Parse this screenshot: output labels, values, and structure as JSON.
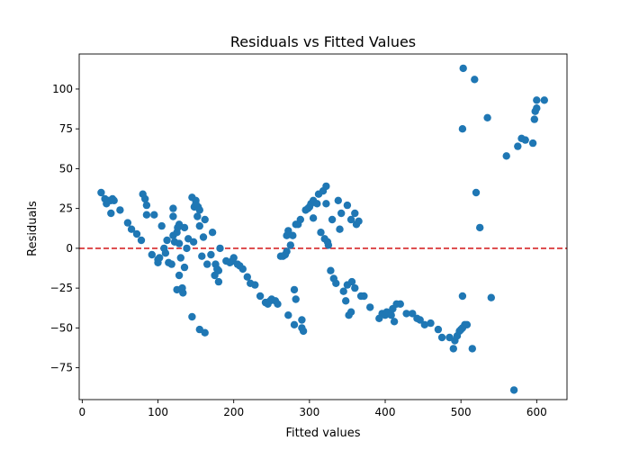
{
  "chart_data": {
    "type": "scatter",
    "title": "Residuals vs Fitted Values",
    "xlabel": "Fitted values",
    "ylabel": "Residuals",
    "xlim": [
      -4,
      640
    ],
    "ylim": [
      -95,
      122
    ],
    "xticks": [
      0,
      100,
      200,
      300,
      400,
      500,
      600
    ],
    "yticks": [
      -75,
      -50,
      -25,
      0,
      25,
      50,
      75,
      100
    ],
    "grid": false,
    "marker_color": "#1f77b4",
    "reference_line": {
      "y": 0,
      "color": "#d62728",
      "style": "dashed"
    },
    "points": [
      [
        25,
        35
      ],
      [
        30,
        31
      ],
      [
        32,
        28
      ],
      [
        35,
        30
      ],
      [
        38,
        30
      ],
      [
        40,
        31
      ],
      [
        42,
        30
      ],
      [
        38,
        22
      ],
      [
        50,
        24
      ],
      [
        60,
        16
      ],
      [
        65,
        12
      ],
      [
        72,
        9
      ],
      [
        78,
        5
      ],
      [
        80,
        34
      ],
      [
        83,
        31
      ],
      [
        85,
        27
      ],
      [
        85,
        21
      ],
      [
        95,
        21
      ],
      [
        92,
        -4
      ],
      [
        100,
        -7
      ],
      [
        100,
        -9
      ],
      [
        102,
        -6
      ],
      [
        105,
        14
      ],
      [
        108,
        0
      ],
      [
        110,
        -3
      ],
      [
        112,
        5
      ],
      [
        114,
        -9
      ],
      [
        118,
        -10
      ],
      [
        120,
        25
      ],
      [
        120,
        20
      ],
      [
        120,
        8
      ],
      [
        122,
        4
      ],
      [
        125,
        10
      ],
      [
        126,
        13
      ],
      [
        128,
        15
      ],
      [
        128,
        -17
      ],
      [
        125,
        -26
      ],
      [
        132,
        -25
      ],
      [
        130,
        -6
      ],
      [
        128,
        3
      ],
      [
        133,
        -28
      ],
      [
        135,
        13
      ],
      [
        135,
        -12
      ],
      [
        138,
        0
      ],
      [
        140,
        6
      ],
      [
        145,
        32
      ],
      [
        145,
        -43
      ],
      [
        147,
        4
      ],
      [
        148,
        26
      ],
      [
        150,
        30
      ],
      [
        150,
        28
      ],
      [
        152,
        20
      ],
      [
        153,
        26
      ],
      [
        155,
        14
      ],
      [
        155,
        24
      ],
      [
        155,
        -51
      ],
      [
        158,
        -5
      ],
      [
        160,
        7
      ],
      [
        162,
        -53
      ],
      [
        162,
        18
      ],
      [
        165,
        -10
      ],
      [
        170,
        -4
      ],
      [
        172,
        10
      ],
      [
        175,
        -17
      ],
      [
        176,
        -10
      ],
      [
        178,
        -13
      ],
      [
        180,
        -14
      ],
      [
        180,
        -21
      ],
      [
        182,
        0
      ],
      [
        190,
        -8
      ],
      [
        195,
        -9
      ],
      [
        198,
        -8
      ],
      [
        200,
        -6
      ],
      [
        205,
        -10
      ],
      [
        208,
        -11
      ],
      [
        212,
        -13
      ],
      [
        218,
        -18
      ],
      [
        222,
        -22
      ],
      [
        228,
        -23
      ],
      [
        235,
        -30
      ],
      [
        242,
        -34
      ],
      [
        245,
        -35
      ],
      [
        248,
        -33
      ],
      [
        250,
        -32
      ],
      [
        255,
        -33
      ],
      [
        258,
        -35
      ],
      [
        262,
        -5
      ],
      [
        265,
        -5
      ],
      [
        268,
        -4
      ],
      [
        270,
        -2
      ],
      [
        270,
        8
      ],
      [
        272,
        11
      ],
      [
        272,
        -42
      ],
      [
        275,
        2
      ],
      [
        278,
        8
      ],
      [
        280,
        -26
      ],
      [
        280,
        -48
      ],
      [
        282,
        -32
      ],
      [
        282,
        15
      ],
      [
        285,
        15
      ],
      [
        288,
        18
      ],
      [
        290,
        -50
      ],
      [
        290,
        -45
      ],
      [
        292,
        -52
      ],
      [
        295,
        24
      ],
      [
        298,
        25
      ],
      [
        300,
        26
      ],
      [
        302,
        28
      ],
      [
        305,
        30
      ],
      [
        305,
        19
      ],
      [
        310,
        28
      ],
      [
        312,
        34
      ],
      [
        315,
        10
      ],
      [
        318,
        36
      ],
      [
        320,
        6
      ],
      [
        322,
        28
      ],
      [
        322,
        39
      ],
      [
        324,
        4
      ],
      [
        325,
        2
      ],
      [
        328,
        -14
      ],
      [
        330,
        18
      ],
      [
        332,
        -19
      ],
      [
        335,
        -22
      ],
      [
        338,
        30
      ],
      [
        340,
        12
      ],
      [
        342,
        22
      ],
      [
        345,
        -27
      ],
      [
        348,
        -33
      ],
      [
        350,
        -23
      ],
      [
        350,
        27
      ],
      [
        352,
        -42
      ],
      [
        355,
        18
      ],
      [
        355,
        -40
      ],
      [
        356,
        -21
      ],
      [
        360,
        -25
      ],
      [
        360,
        22
      ],
      [
        362,
        15
      ],
      [
        365,
        17
      ],
      [
        368,
        -30
      ],
      [
        372,
        -30
      ],
      [
        380,
        -37
      ],
      [
        392,
        -44
      ],
      [
        396,
        -41
      ],
      [
        400,
        -42
      ],
      [
        402,
        -40
      ],
      [
        408,
        -42
      ],
      [
        410,
        -38
      ],
      [
        412,
        -46
      ],
      [
        415,
        -35
      ],
      [
        420,
        -35
      ],
      [
        428,
        -41
      ],
      [
        436,
        -41
      ],
      [
        442,
        -44
      ],
      [
        446,
        -45
      ],
      [
        452,
        -48
      ],
      [
        460,
        -47
      ],
      [
        470,
        -51
      ],
      [
        475,
        -56
      ],
      [
        485,
        -56
      ],
      [
        490,
        -63
      ],
      [
        492,
        -58
      ],
      [
        495,
        -55
      ],
      [
        498,
        -52
      ],
      [
        500,
        -51
      ],
      [
        502,
        -50
      ],
      [
        502,
        -30
      ],
      [
        502,
        75
      ],
      [
        503,
        113
      ],
      [
        505,
        -48
      ],
      [
        508,
        -48
      ],
      [
        515,
        -63
      ],
      [
        518,
        106
      ],
      [
        520,
        35
      ],
      [
        525,
        13
      ],
      [
        535,
        82
      ],
      [
        540,
        -31
      ],
      [
        560,
        58
      ],
      [
        570,
        -89
      ],
      [
        575,
        64
      ],
      [
        580,
        69
      ],
      [
        585,
        68
      ],
      [
        595,
        66
      ],
      [
        597,
        81
      ],
      [
        598,
        86
      ],
      [
        600,
        88
      ],
      [
        600,
        93
      ],
      [
        610,
        93
      ]
    ]
  }
}
